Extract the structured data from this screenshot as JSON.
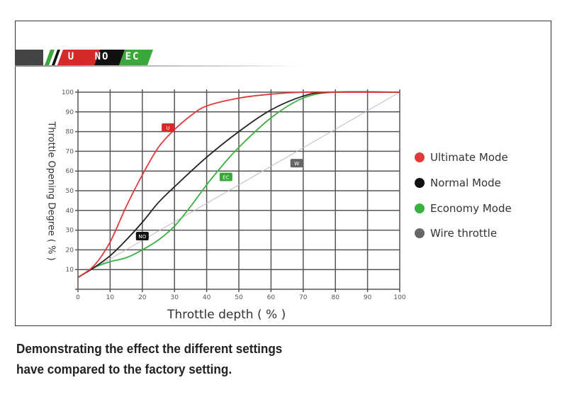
{
  "logo": {
    "badges": [
      "U",
      "NO",
      "EC"
    ],
    "colors": [
      "#d42a2a",
      "#111111",
      "#3aa83a"
    ]
  },
  "chart_data": {
    "type": "line",
    "xlabel": "Throttle depth ( % )",
    "ylabel": "Throttle Opening Degree ( % )",
    "xlim": [
      0,
      100
    ],
    "ylim": [
      0,
      100
    ],
    "xticks": [
      0,
      10,
      20,
      30,
      40,
      50,
      60,
      70,
      80,
      90,
      100
    ],
    "yticks": [
      10,
      20,
      30,
      40,
      50,
      60,
      70,
      80,
      90,
      100
    ],
    "grid": true,
    "legend_position": "right",
    "series": [
      {
        "name": "Ultimate Mode",
        "badge": "U",
        "color": "#e03a3a",
        "badge_at": [
          28,
          82
        ],
        "points": [
          [
            0,
            6
          ],
          [
            5,
            12
          ],
          [
            10,
            24
          ],
          [
            15,
            42
          ],
          [
            20,
            58
          ],
          [
            25,
            72
          ],
          [
            30,
            81
          ],
          [
            35,
            88
          ],
          [
            40,
            93
          ],
          [
            50,
            97
          ],
          [
            60,
            99
          ],
          [
            70,
            100
          ],
          [
            80,
            100
          ],
          [
            100,
            100
          ]
        ]
      },
      {
        "name": "Normal Mode",
        "badge": "NO",
        "color": "#222222",
        "badge_at": [
          20,
          27
        ],
        "points": [
          [
            0,
            6
          ],
          [
            5,
            11
          ],
          [
            10,
            17
          ],
          [
            15,
            25
          ],
          [
            20,
            34
          ],
          [
            25,
            44
          ],
          [
            30,
            52
          ],
          [
            40,
            67
          ],
          [
            50,
            80
          ],
          [
            60,
            91
          ],
          [
            70,
            98
          ],
          [
            78,
            100
          ],
          [
            100,
            100
          ]
        ]
      },
      {
        "name": "Economy Mode",
        "badge": "EC",
        "color": "#3cb043",
        "badge_at": [
          46,
          57
        ],
        "points": [
          [
            0,
            6
          ],
          [
            5,
            11
          ],
          [
            10,
            14
          ],
          [
            15,
            16
          ],
          [
            20,
            20
          ],
          [
            25,
            25
          ],
          [
            30,
            32
          ],
          [
            35,
            42
          ],
          [
            40,
            53
          ],
          [
            45,
            63
          ],
          [
            50,
            72
          ],
          [
            60,
            87
          ],
          [
            70,
            97
          ],
          [
            80,
            100
          ],
          [
            100,
            100
          ]
        ]
      },
      {
        "name": "Wire throttle",
        "badge": "W",
        "color": "#bbbbbb",
        "badge_at": [
          68,
          64
        ],
        "points": [
          [
            0,
            6
          ],
          [
            100,
            100
          ]
        ]
      }
    ]
  },
  "caption": {
    "line1": "Demonstrating the effect the different settings",
    "line2": "have compared to the factory setting."
  }
}
